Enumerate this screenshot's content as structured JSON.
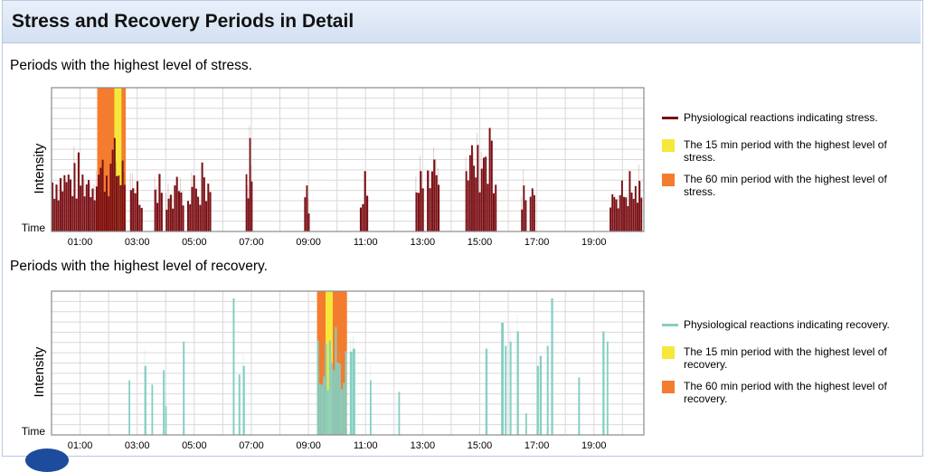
{
  "title": "Stress and Recovery Periods in Detail",
  "colors": {
    "stress": "#7a1016",
    "recovery": "#84cfc3",
    "highlight15": "#f5e83a",
    "highlight60": "#f47c2e"
  },
  "chart_data": [
    {
      "type": "bar",
      "title": "Periods with the highest level of stress.",
      "ylabel": "Intensity",
      "xlabel": "Time",
      "x_unit": "hours",
      "xlim": [
        0.0,
        20.75
      ],
      "ylim": [
        0,
        1
      ],
      "grid": true,
      "legend_position": "right",
      "x_ticks": [
        "01:00",
        "03:00",
        "05:00",
        "07:00",
        "09:00",
        "11:00",
        "13:00",
        "15:00",
        "17:00",
        "19:00"
      ],
      "x_tick_values": [
        1,
        3,
        5,
        7,
        9,
        11,
        13,
        15,
        17,
        19
      ],
      "legend": [
        {
          "label": "Physiological reactions indicating stress.",
          "kind": "line",
          "color": "#7a1016"
        },
        {
          "label": "The 15 min period with the highest level of stress.",
          "kind": "box",
          "color": "#f5e83a"
        },
        {
          "label": "The 60 min period with the highest level of stress.",
          "kind": "box",
          "color": "#f47c2e"
        }
      ],
      "highlight_60min": [
        1.6,
        2.6
      ],
      "highlight_15min": [
        2.2,
        2.45
      ],
      "series": [
        {
          "segments": [
            {
              "start": 0.0,
              "end": 1.55,
              "peak": 0.55
            },
            {
              "start": 1.55,
              "end": 2.6,
              "peak": 0.65
            },
            {
              "start": 2.75,
              "end": 3.2,
              "peak": 0.35
            },
            {
              "start": 3.6,
              "end": 3.9,
              "peak": 0.4
            },
            {
              "start": 4.0,
              "end": 4.65,
              "peak": 0.38
            },
            {
              "start": 4.75,
              "end": 5.6,
              "peak": 0.48
            },
            {
              "start": 6.8,
              "end": 7.05,
              "peak": 0.65
            },
            {
              "start": 8.85,
              "end": 9.05,
              "peak": 0.32
            },
            {
              "start": 10.8,
              "end": 11.1,
              "peak": 0.42
            },
            {
              "start": 12.75,
              "end": 13.05,
              "peak": 0.42
            },
            {
              "start": 13.15,
              "end": 13.6,
              "peak": 0.5
            },
            {
              "start": 14.5,
              "end": 14.9,
              "peak": 0.6
            },
            {
              "start": 14.9,
              "end": 15.6,
              "peak": 0.72
            },
            {
              "start": 16.45,
              "end": 16.65,
              "peak": 0.32
            },
            {
              "start": 16.75,
              "end": 16.95,
              "peak": 0.3
            },
            {
              "start": 19.55,
              "end": 20.7,
              "peak": 0.42
            }
          ]
        }
      ]
    },
    {
      "type": "bar",
      "title": "Periods with the highest level of recovery.",
      "ylabel": "Intensity",
      "xlabel": "Time",
      "x_unit": "hours",
      "xlim": [
        0.0,
        20.75
      ],
      "ylim": [
        0,
        1
      ],
      "grid": true,
      "legend_position": "right",
      "x_ticks": [
        "01:00",
        "03:00",
        "05:00",
        "07:00",
        "09:00",
        "11:00",
        "13:00",
        "15:00",
        "17:00",
        "19:00"
      ],
      "x_tick_values": [
        1,
        3,
        5,
        7,
        9,
        11,
        13,
        15,
        17,
        19
      ],
      "legend": [
        {
          "label": "Physiological reactions indicating recovery.",
          "kind": "line",
          "color": "#84cfc3"
        },
        {
          "label": "The 15 min period with the highest level of recovery.",
          "kind": "box",
          "color": "#f5e83a"
        },
        {
          "label": "The 60 min period with the highest level of recovery.",
          "kind": "box",
          "color": "#f47c2e"
        }
      ],
      "highlight_60min": [
        9.3,
        10.35
      ],
      "highlight_15min": [
        9.6,
        9.85
      ],
      "series": [
        {
          "segments": [
            {
              "start": 2.7,
              "end": 2.76,
              "peak": 0.38
            },
            {
              "start": 3.25,
              "end": 3.33,
              "peak": 0.48
            },
            {
              "start": 3.5,
              "end": 3.56,
              "peak": 0.35
            },
            {
              "start": 3.9,
              "end": 3.97,
              "peak": 0.45
            },
            {
              "start": 3.98,
              "end": 4.04,
              "peak": 0.2
            },
            {
              "start": 4.6,
              "end": 4.67,
              "peak": 0.65
            },
            {
              "start": 6.35,
              "end": 6.42,
              "peak": 0.95
            },
            {
              "start": 6.55,
              "end": 6.62,
              "peak": 0.42
            },
            {
              "start": 6.7,
              "end": 6.78,
              "peak": 0.48
            },
            {
              "start": 9.3,
              "end": 10.35,
              "peak": 0.75
            },
            {
              "start": 10.45,
              "end": 10.55,
              "peak": 0.58
            },
            {
              "start": 10.55,
              "end": 10.65,
              "peak": 0.6
            },
            {
              "start": 11.15,
              "end": 11.2,
              "peak": 0.38
            },
            {
              "start": 12.15,
              "end": 12.2,
              "peak": 0.3
            },
            {
              "start": 15.2,
              "end": 15.28,
              "peak": 0.6
            },
            {
              "start": 15.75,
              "end": 15.85,
              "peak": 0.78
            },
            {
              "start": 15.88,
              "end": 15.95,
              "peak": 0.62
            },
            {
              "start": 16.05,
              "end": 16.12,
              "peak": 0.65
            },
            {
              "start": 16.3,
              "end": 16.38,
              "peak": 0.72
            },
            {
              "start": 16.6,
              "end": 16.65,
              "peak": 0.15
            },
            {
              "start": 17.0,
              "end": 17.08,
              "peak": 0.48
            },
            {
              "start": 17.1,
              "end": 17.18,
              "peak": 0.55
            },
            {
              "start": 17.35,
              "end": 17.42,
              "peak": 0.62
            },
            {
              "start": 17.5,
              "end": 17.58,
              "peak": 0.95
            },
            {
              "start": 18.45,
              "end": 18.52,
              "peak": 0.4
            },
            {
              "start": 19.3,
              "end": 19.38,
              "peak": 0.72
            },
            {
              "start": 19.45,
              "end": 19.5,
              "peak": 0.65
            }
          ]
        }
      ]
    }
  ]
}
